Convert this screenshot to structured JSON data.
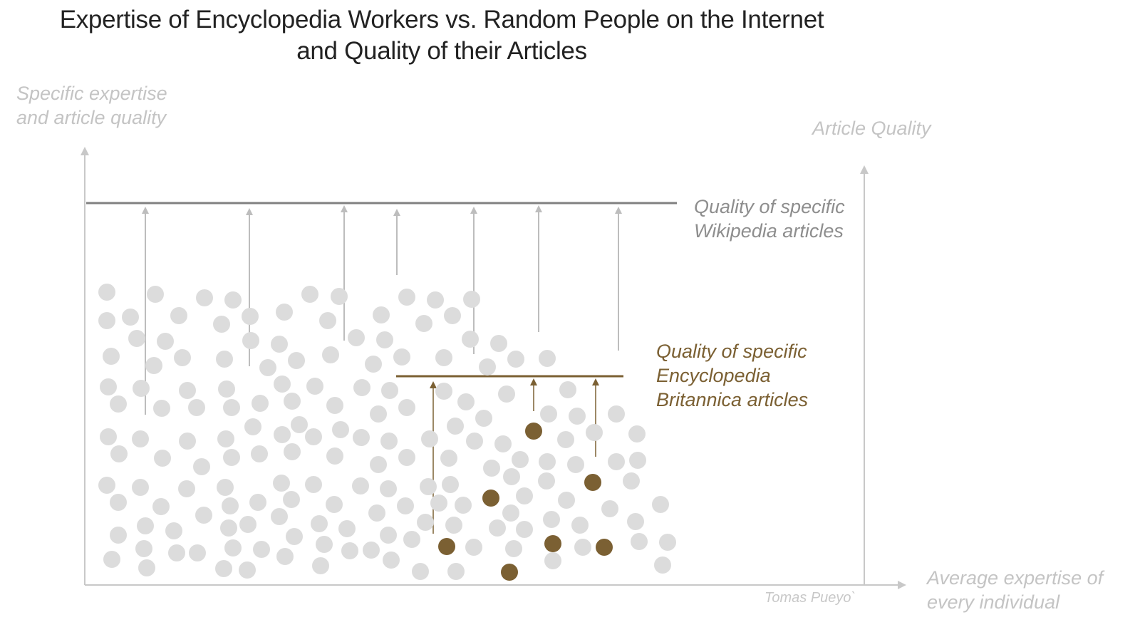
{
  "title": {
    "line1": "Expertise of Encyclopedia Workers vs. Random People on the Internet",
    "line2": "and Quality of their Articles"
  },
  "y_axis_label": {
    "line1": "Specific expertise",
    "line2": "and article quality"
  },
  "right_axis_label": "Article Quality",
  "x_axis_label": {
    "line1": "Average expertise of",
    "line2": "every individual"
  },
  "wikipedia_label": {
    "line1": "Quality of specific",
    "line2": "Wikipedia articles"
  },
  "britannica_label": {
    "line1": "Quality of specific",
    "line2": "Encyclopedia",
    "line3": "Britannica articles"
  },
  "credit": "Tomas Pueyo`",
  "colors": {
    "crowd": "#dcdcdc",
    "expert": "#7b6033",
    "axis": "#c8c8c8",
    "wiki_line": "#808080",
    "arrow": "#bdbdbd"
  }
}
